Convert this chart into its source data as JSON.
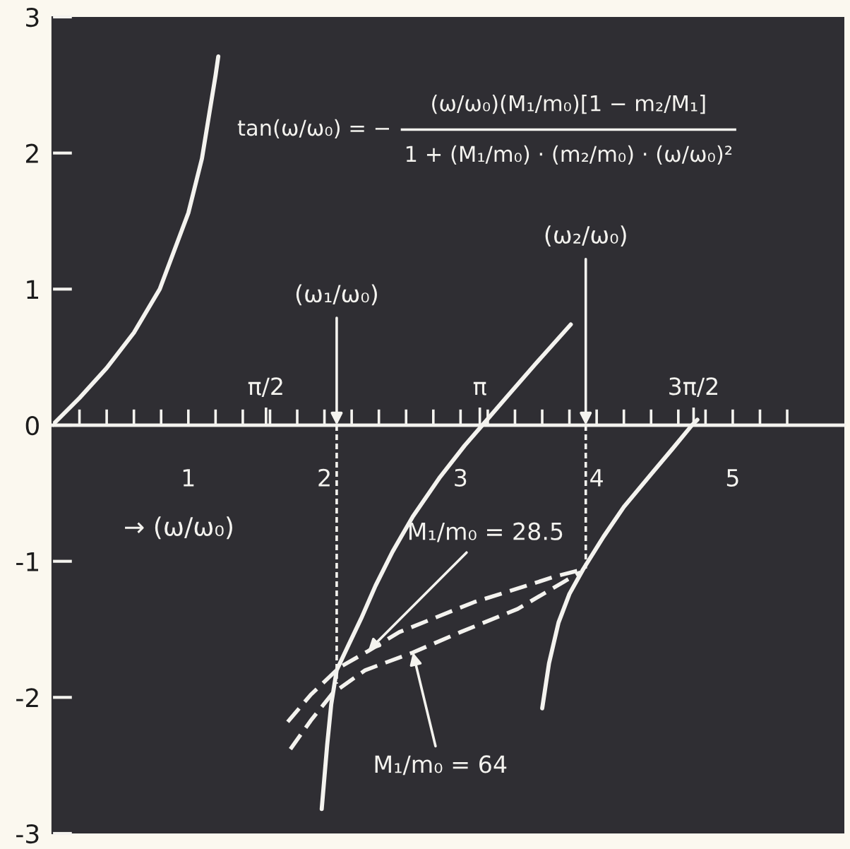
{
  "chart_data": {
    "type": "line",
    "xlabel": "→ (ω/ω₀)",
    "xlim": [
      0,
      5.82
    ],
    "ylim": [
      -3,
      3
    ],
    "xticks": [
      {
        "value": 0.2,
        "label": null
      },
      {
        "value": 0.4,
        "label": null
      },
      {
        "value": 0.6,
        "label": null
      },
      {
        "value": 0.8,
        "label": null
      },
      1,
      {
        "value": 1.2,
        "label": null
      },
      {
        "value": 1.4,
        "label": null
      },
      {
        "value": 1.6,
        "label": null
      },
      {
        "value": 1.8,
        "label": null
      },
      2,
      {
        "value": 2.2,
        "label": null
      },
      {
        "value": 2.4,
        "label": null
      },
      {
        "value": 2.6,
        "label": null
      },
      {
        "value": 2.8,
        "label": null
      },
      3,
      {
        "value": 3.2,
        "label": null
      },
      {
        "value": 3.4,
        "label": null
      },
      {
        "value": 3.6,
        "label": null
      },
      {
        "value": 3.8,
        "label": null
      },
      4,
      {
        "value": 4.2,
        "label": null
      },
      {
        "value": 4.4,
        "label": null
      },
      {
        "value": 4.6,
        "label": null
      },
      {
        "value": 4.8,
        "label": null
      },
      5,
      {
        "value": 5.2,
        "label": null
      },
      {
        "value": 5.4,
        "label": null
      }
    ],
    "x2lim": [
      0,
      5.82
    ],
    "x2ticks": [
      {
        "value": 1.5708,
        "label": "π/2"
      },
      {
        "value": 3.1416,
        "label": "π"
      },
      {
        "value": 4.7124,
        "label": "3π/2"
      }
    ],
    "yticks": [
      -3,
      -2,
      -1,
      0,
      1,
      2,
      3
    ],
    "annotations": [
      "tan(ω/ω₀) = −",
      "(ω/ω₀)(M₁/m₀)[1 − m₂/M₁]",
      "1 + (M₁/m₀) · (m₂/m₀) · (ω/ω₀)²",
      {
        "text": "(ω₁/ω₀)",
        "x": 2.09,
        "y": 0
      },
      {
        "text": "(ω₂/ω₀)",
        "x": 3.92,
        "y": 0
      },
      {
        "text": "M₁/m₀ = 28.5",
        "x": 2.32,
        "y": -1.66
      },
      {
        "text": "M₁/m₀ = 64",
        "x": 2.65,
        "y": -1.67
      }
    ],
    "series": [
      {
        "color": "#f4f3ef",
        "line_style": "solid",
        "x": [
          0,
          0.2,
          0.4,
          0.6,
          0.79,
          1.0,
          1.1,
          1.2,
          1.22
        ],
        "values": [
          0,
          0.2,
          0.42,
          0.68,
          1.0,
          1.56,
          1.96,
          2.57,
          2.71
        ]
      },
      {
        "color": "#f4f3ef",
        "line_style": "solid",
        "x": [
          1.98,
          2.02,
          2.05,
          2.09,
          2.17,
          2.27,
          2.375,
          2.5,
          2.65,
          2.85,
          3.03,
          3.16,
          3.35,
          3.55,
          3.81
        ],
        "values": [
          -2.82,
          -2.35,
          -2.05,
          -1.8,
          -1.63,
          -1.42,
          -1.18,
          -0.93,
          -0.67,
          -0.38,
          -0.15,
          0,
          0.22,
          0.45,
          0.74
        ]
      },
      {
        "color": "#f4f3ef",
        "line_style": "solid",
        "x": [
          3.6,
          3.65,
          3.72,
          3.8,
          3.9,
          4.05,
          4.2,
          4.4,
          4.56,
          4.7,
          4.74
        ],
        "values": [
          -2.08,
          -1.75,
          -1.45,
          -1.24,
          -1.06,
          -0.82,
          -0.6,
          -0.36,
          -0.17,
          0,
          0.04
        ]
      },
      {
        "color": "#f4f3ef",
        "line_style": "dashed",
        "x": [
          1.73,
          1.9,
          2.11,
          2.32,
          2.55,
          2.8,
          3.1,
          3.42,
          3.7,
          3.9
        ],
        "values": [
          -2.18,
          -1.98,
          -1.78,
          -1.66,
          -1.52,
          -1.42,
          -1.3,
          -1.2,
          -1.11,
          -1.06
        ]
      },
      {
        "color": "#f4f3ef",
        "line_style": "dashed",
        "x": [
          1.75,
          1.9,
          2.06,
          2.3,
          2.65,
          3.0,
          3.42,
          3.76,
          3.88
        ],
        "values": [
          -2.38,
          -2.17,
          -1.97,
          -1.8,
          -1.67,
          -1.52,
          -1.35,
          -1.15,
          -1.08
        ]
      },
      {
        "color": "#f4f3ef",
        "line_style": "dotted",
        "x": [
          2.09,
          2.09
        ],
        "values": [
          0,
          -1.9
        ]
      },
      {
        "color": "#f4f3ef",
        "line_style": "dotted",
        "x": [
          3.92,
          3.92
        ],
        "values": [
          0,
          -1.06
        ]
      }
    ]
  }
}
